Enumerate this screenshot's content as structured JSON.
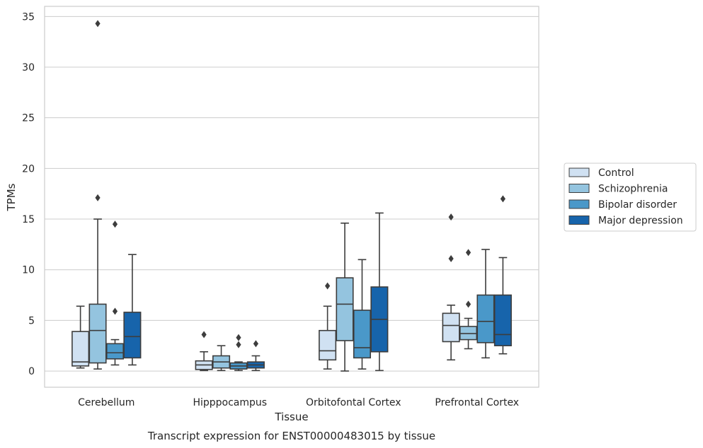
{
  "chart_data": {
    "type": "box",
    "title": "",
    "caption": "Transcript expression for ENST00000483015 by tissue",
    "xlabel": "Tissue",
    "ylabel": "TPMs",
    "ylim": [
      -1.6,
      36
    ],
    "yticks": [
      0,
      5,
      10,
      15,
      20,
      25,
      30,
      35
    ],
    "grid": "horizontal",
    "legend_position": "right",
    "categories": [
      "Cerebellum",
      "Hipppocampus",
      "Orbitofontal Cortex",
      "Prefrontal Cortex"
    ],
    "colors": [
      "#d0e1f2",
      "#94c4df",
      "#4a98c9",
      "#1764ab"
    ],
    "series": [
      {
        "name": "Control",
        "boxes": [
          {
            "whislo": 0.3,
            "q1": 0.5,
            "med": 0.9,
            "q3": 3.9,
            "whishi": 6.4,
            "fliers": []
          },
          {
            "whislo": 0.05,
            "q1": 0.15,
            "med": 0.6,
            "q3": 1.0,
            "whishi": 1.9,
            "fliers": [
              3.6
            ]
          },
          {
            "whislo": 0.2,
            "q1": 1.1,
            "med": 2.0,
            "q3": 4.0,
            "whishi": 6.4,
            "fliers": [
              8.4
            ]
          },
          {
            "whislo": 1.1,
            "q1": 2.9,
            "med": 4.5,
            "q3": 5.7,
            "whishi": 6.5,
            "fliers": [
              11.1,
              15.2
            ]
          }
        ]
      },
      {
        "name": "Schizophrenia",
        "boxes": [
          {
            "whislo": 0.2,
            "q1": 0.8,
            "med": 4.0,
            "q3": 6.6,
            "whishi": 15.0,
            "fliers": [
              17.1,
              34.3
            ]
          },
          {
            "whislo": 0.05,
            "q1": 0.3,
            "med": 0.9,
            "q3": 1.5,
            "whishi": 2.5,
            "fliers": []
          },
          {
            "whislo": 0.0,
            "q1": 3.0,
            "med": 6.6,
            "q3": 9.2,
            "whishi": 14.6,
            "fliers": []
          },
          {
            "whislo": 2.2,
            "q1": 3.1,
            "med": 3.7,
            "q3": 4.4,
            "whishi": 5.2,
            "fliers": [
              6.6,
              11.7
            ]
          }
        ]
      },
      {
        "name": "Bipolar disorder",
        "boxes": [
          {
            "whislo": 0.6,
            "q1": 1.2,
            "med": 1.8,
            "q3": 2.7,
            "whishi": 3.1,
            "fliers": [
              5.9,
              14.5
            ]
          },
          {
            "whislo": 0.05,
            "q1": 0.2,
            "med": 0.5,
            "q3": 0.8,
            "whishi": 0.9,
            "fliers": [
              2.6,
              3.3
            ]
          },
          {
            "whislo": 0.2,
            "q1": 1.3,
            "med": 2.3,
            "q3": 6.0,
            "whishi": 11.0,
            "fliers": []
          },
          {
            "whislo": 1.3,
            "q1": 2.8,
            "med": 4.9,
            "q3": 7.5,
            "whishi": 12.0,
            "fliers": []
          }
        ]
      },
      {
        "name": "Major depression",
        "boxes": [
          {
            "whislo": 0.6,
            "q1": 1.3,
            "med": 3.4,
            "q3": 5.8,
            "whishi": 11.5,
            "fliers": []
          },
          {
            "whislo": 0.05,
            "q1": 0.3,
            "med": 0.6,
            "q3": 0.9,
            "whishi": 1.5,
            "fliers": [
              2.7
            ]
          },
          {
            "whislo": 0.05,
            "q1": 1.9,
            "med": 5.1,
            "q3": 8.3,
            "whishi": 15.6,
            "fliers": []
          },
          {
            "whislo": 1.7,
            "q1": 2.5,
            "med": 3.6,
            "q3": 7.5,
            "whishi": 11.2,
            "fliers": [
              17.0
            ]
          }
        ]
      }
    ]
  }
}
